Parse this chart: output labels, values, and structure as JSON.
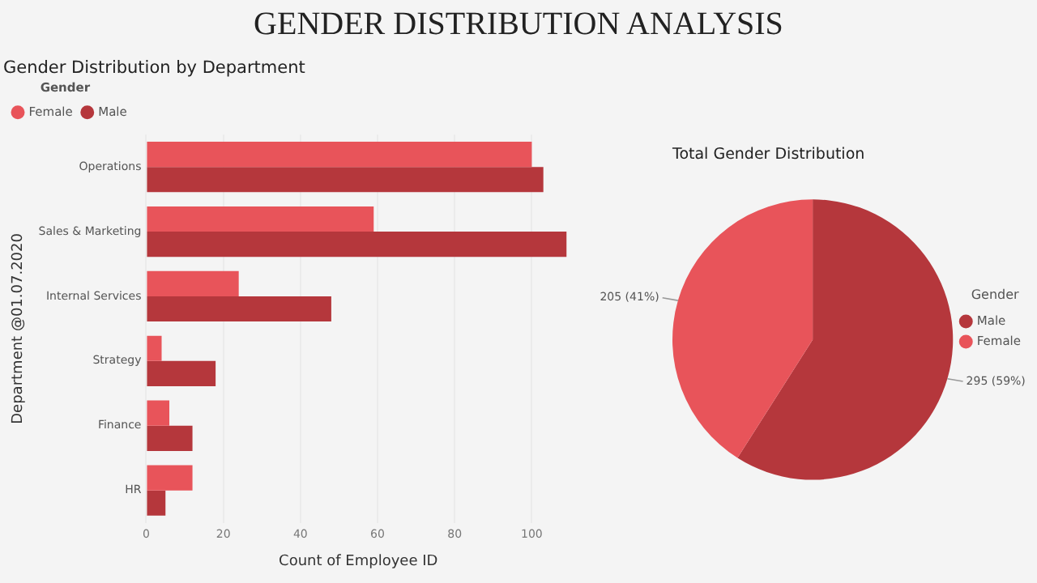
{
  "chart_data": [
    {
      "type": "other",
      "title": "GENDER DISTRIBUTION ANALYSIS"
    },
    {
      "type": "bar",
      "title": "Gender Distribution by Department",
      "orientation": "horizontal",
      "categories": [
        "Operations",
        "Sales & Marketing",
        "Internal Services",
        "Strategy",
        "Finance",
        "HR"
      ],
      "series": [
        {
          "name": "Female",
          "color": "#e8545a",
          "values": [
            100,
            59,
            24,
            4,
            6,
            12
          ]
        },
        {
          "name": "Male",
          "color": "#b5373c",
          "values": [
            103,
            109,
            48,
            18,
            12,
            5
          ]
        }
      ],
      "xlabel": "Count of Employee ID",
      "ylabel": "Department @01.07.2020",
      "legend_title": "Gender",
      "legend": "top left",
      "xlim": [
        0,
        110
      ],
      "xticks": [
        0,
        20,
        40,
        60,
        80,
        100
      ],
      "grid": "x"
    },
    {
      "type": "pie",
      "title": "Total Gender Distribution",
      "categories": [
        "Male",
        "Female"
      ],
      "values": [
        295,
        205
      ],
      "colors": [
        "#b5373c",
        "#e8545a"
      ],
      "value_labels": [
        "295 (59%)",
        "205 (41%)"
      ],
      "legend_title": "Gender",
      "legend": "right"
    }
  ]
}
